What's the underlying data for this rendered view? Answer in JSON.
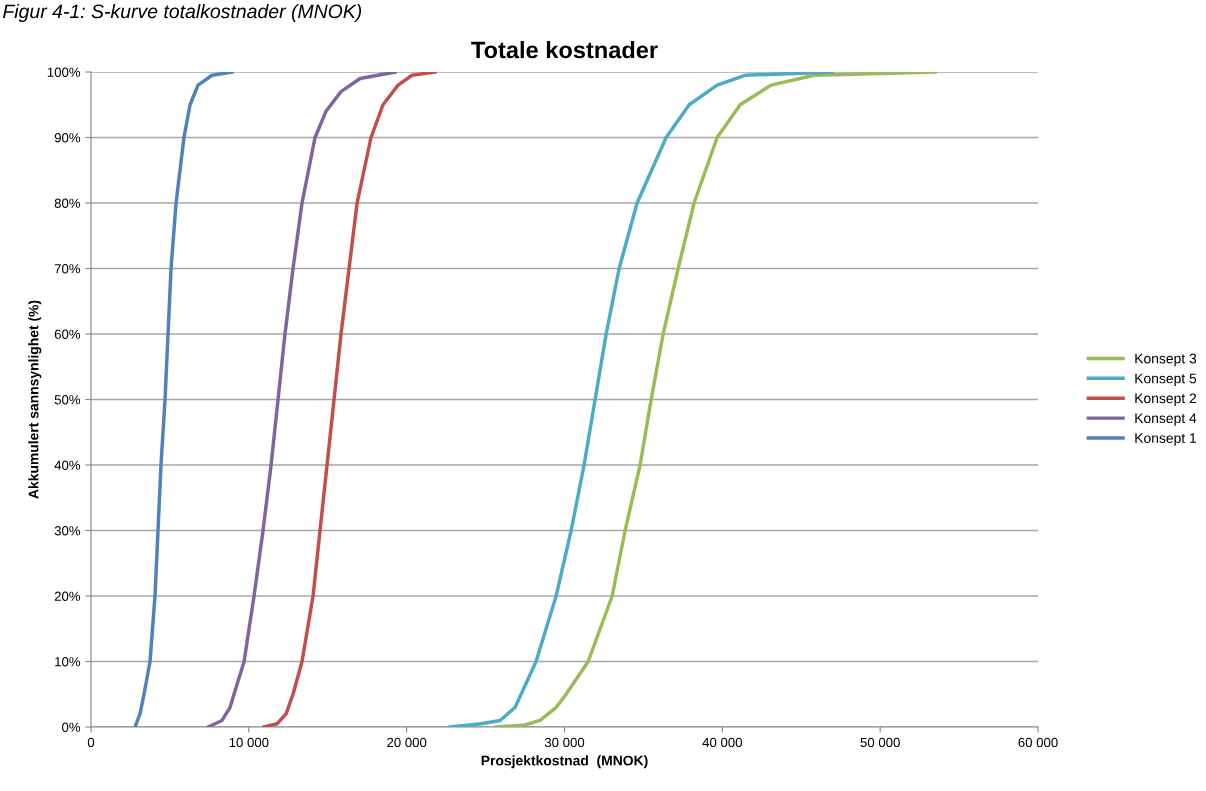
{
  "chart_data": {
    "type": "line",
    "title": "Totale kostnader",
    "xlabel": "Prosjektkostnad  (MNOK)",
    "ylabel": "Akkumulert sannsynlighet (%)",
    "annotations": [
      "Figur 4-1: S-kurve totalkostnader (MNOK)"
    ],
    "xlim": [
      0,
      60000
    ],
    "ylim": [
      0,
      100
    ],
    "xticks": [
      {
        "value": 0,
        "label": "0"
      },
      {
        "value": 10000,
        "label": "10 000"
      },
      {
        "value": 20000,
        "label": "20 000"
      },
      {
        "value": 30000,
        "label": "30 000"
      },
      {
        "value": 40000,
        "label": "40 000"
      },
      {
        "value": 50000,
        "label": "50 000"
      },
      {
        "value": 60000,
        "label": "60 000"
      }
    ],
    "yticks": [
      {
        "value": 0,
        "label": "0%"
      },
      {
        "value": 10,
        "label": "10%"
      },
      {
        "value": 20,
        "label": "20%"
      },
      {
        "value": 30,
        "label": "30%"
      },
      {
        "value": 40,
        "label": "40%"
      },
      {
        "value": 50,
        "label": "50%"
      },
      {
        "value": 60,
        "label": "60%"
      },
      {
        "value": 70,
        "label": "70%"
      },
      {
        "value": 80,
        "label": "80%"
      },
      {
        "value": 90,
        "label": "90%"
      },
      {
        "value": 100,
        "label": "100%"
      }
    ],
    "grid": "y",
    "legend": "right",
    "marker": "none",
    "line_style": "solid",
    "series": [
      {
        "name": "Konsept 3",
        "color": "#9bbb59",
        "x": [
          25670,
          27500,
          28450,
          29470,
          30100,
          31500,
          33020,
          33840,
          34790,
          35490,
          36250,
          37200,
          38210,
          39670,
          41130,
          43090,
          45820,
          53490
        ],
        "values": [
          0,
          0.3,
          1,
          3,
          5,
          10,
          20,
          30,
          40,
          50,
          60,
          70,
          80,
          90,
          95,
          98,
          99.5,
          100
        ]
      },
      {
        "name": "Konsept 5",
        "color": "#4bacc6",
        "x": [
          22750,
          24715,
          25920,
          26870,
          27250,
          28200,
          29470,
          30420,
          31240,
          31940,
          32640,
          33460,
          34600,
          36440,
          37900,
          39670,
          41440,
          46960
        ],
        "values": [
          0,
          0.5,
          1,
          3,
          5,
          10,
          20,
          30,
          40,
          50,
          60,
          70,
          80,
          90,
          95,
          98,
          99.5,
          100
        ]
      },
      {
        "name": "Konsept 2",
        "color": "#c0504d",
        "x": [
          10960,
          11790,
          12360,
          12800,
          13370,
          14070,
          14510,
          14955,
          15400,
          15840,
          16350,
          16860,
          17740,
          18500,
          19455,
          20340,
          21800
        ],
        "values": [
          0,
          0.5,
          2,
          5,
          10,
          20,
          30,
          40,
          50,
          60,
          70,
          80,
          90,
          95,
          98,
          99.5,
          100
        ]
      },
      {
        "name": "Konsept 4",
        "color": "#8064a2",
        "x": [
          7415,
          8300,
          8810,
          9060,
          9700,
          10330,
          10900,
          11410,
          11850,
          12290,
          12800,
          13370,
          14195,
          14890,
          15840,
          17050,
          19265
        ],
        "values": [
          0,
          1,
          3,
          5,
          10,
          20,
          30,
          40,
          50,
          60,
          70,
          80,
          90,
          94,
          97,
          99,
          100
        ]
      },
      {
        "name": "Konsept 1",
        "color": "#4f81bd",
        "x": [
          2790,
          3105,
          3360,
          3740,
          4055,
          4245,
          4435,
          4690,
          4880,
          5070,
          5390,
          5890,
          6275,
          6780,
          7670,
          8935
        ],
        "values": [
          0,
          2,
          5,
          10,
          20,
          30,
          40,
          50,
          60,
          70,
          80,
          90,
          95,
          98,
          99.5,
          100
        ]
      }
    ]
  }
}
